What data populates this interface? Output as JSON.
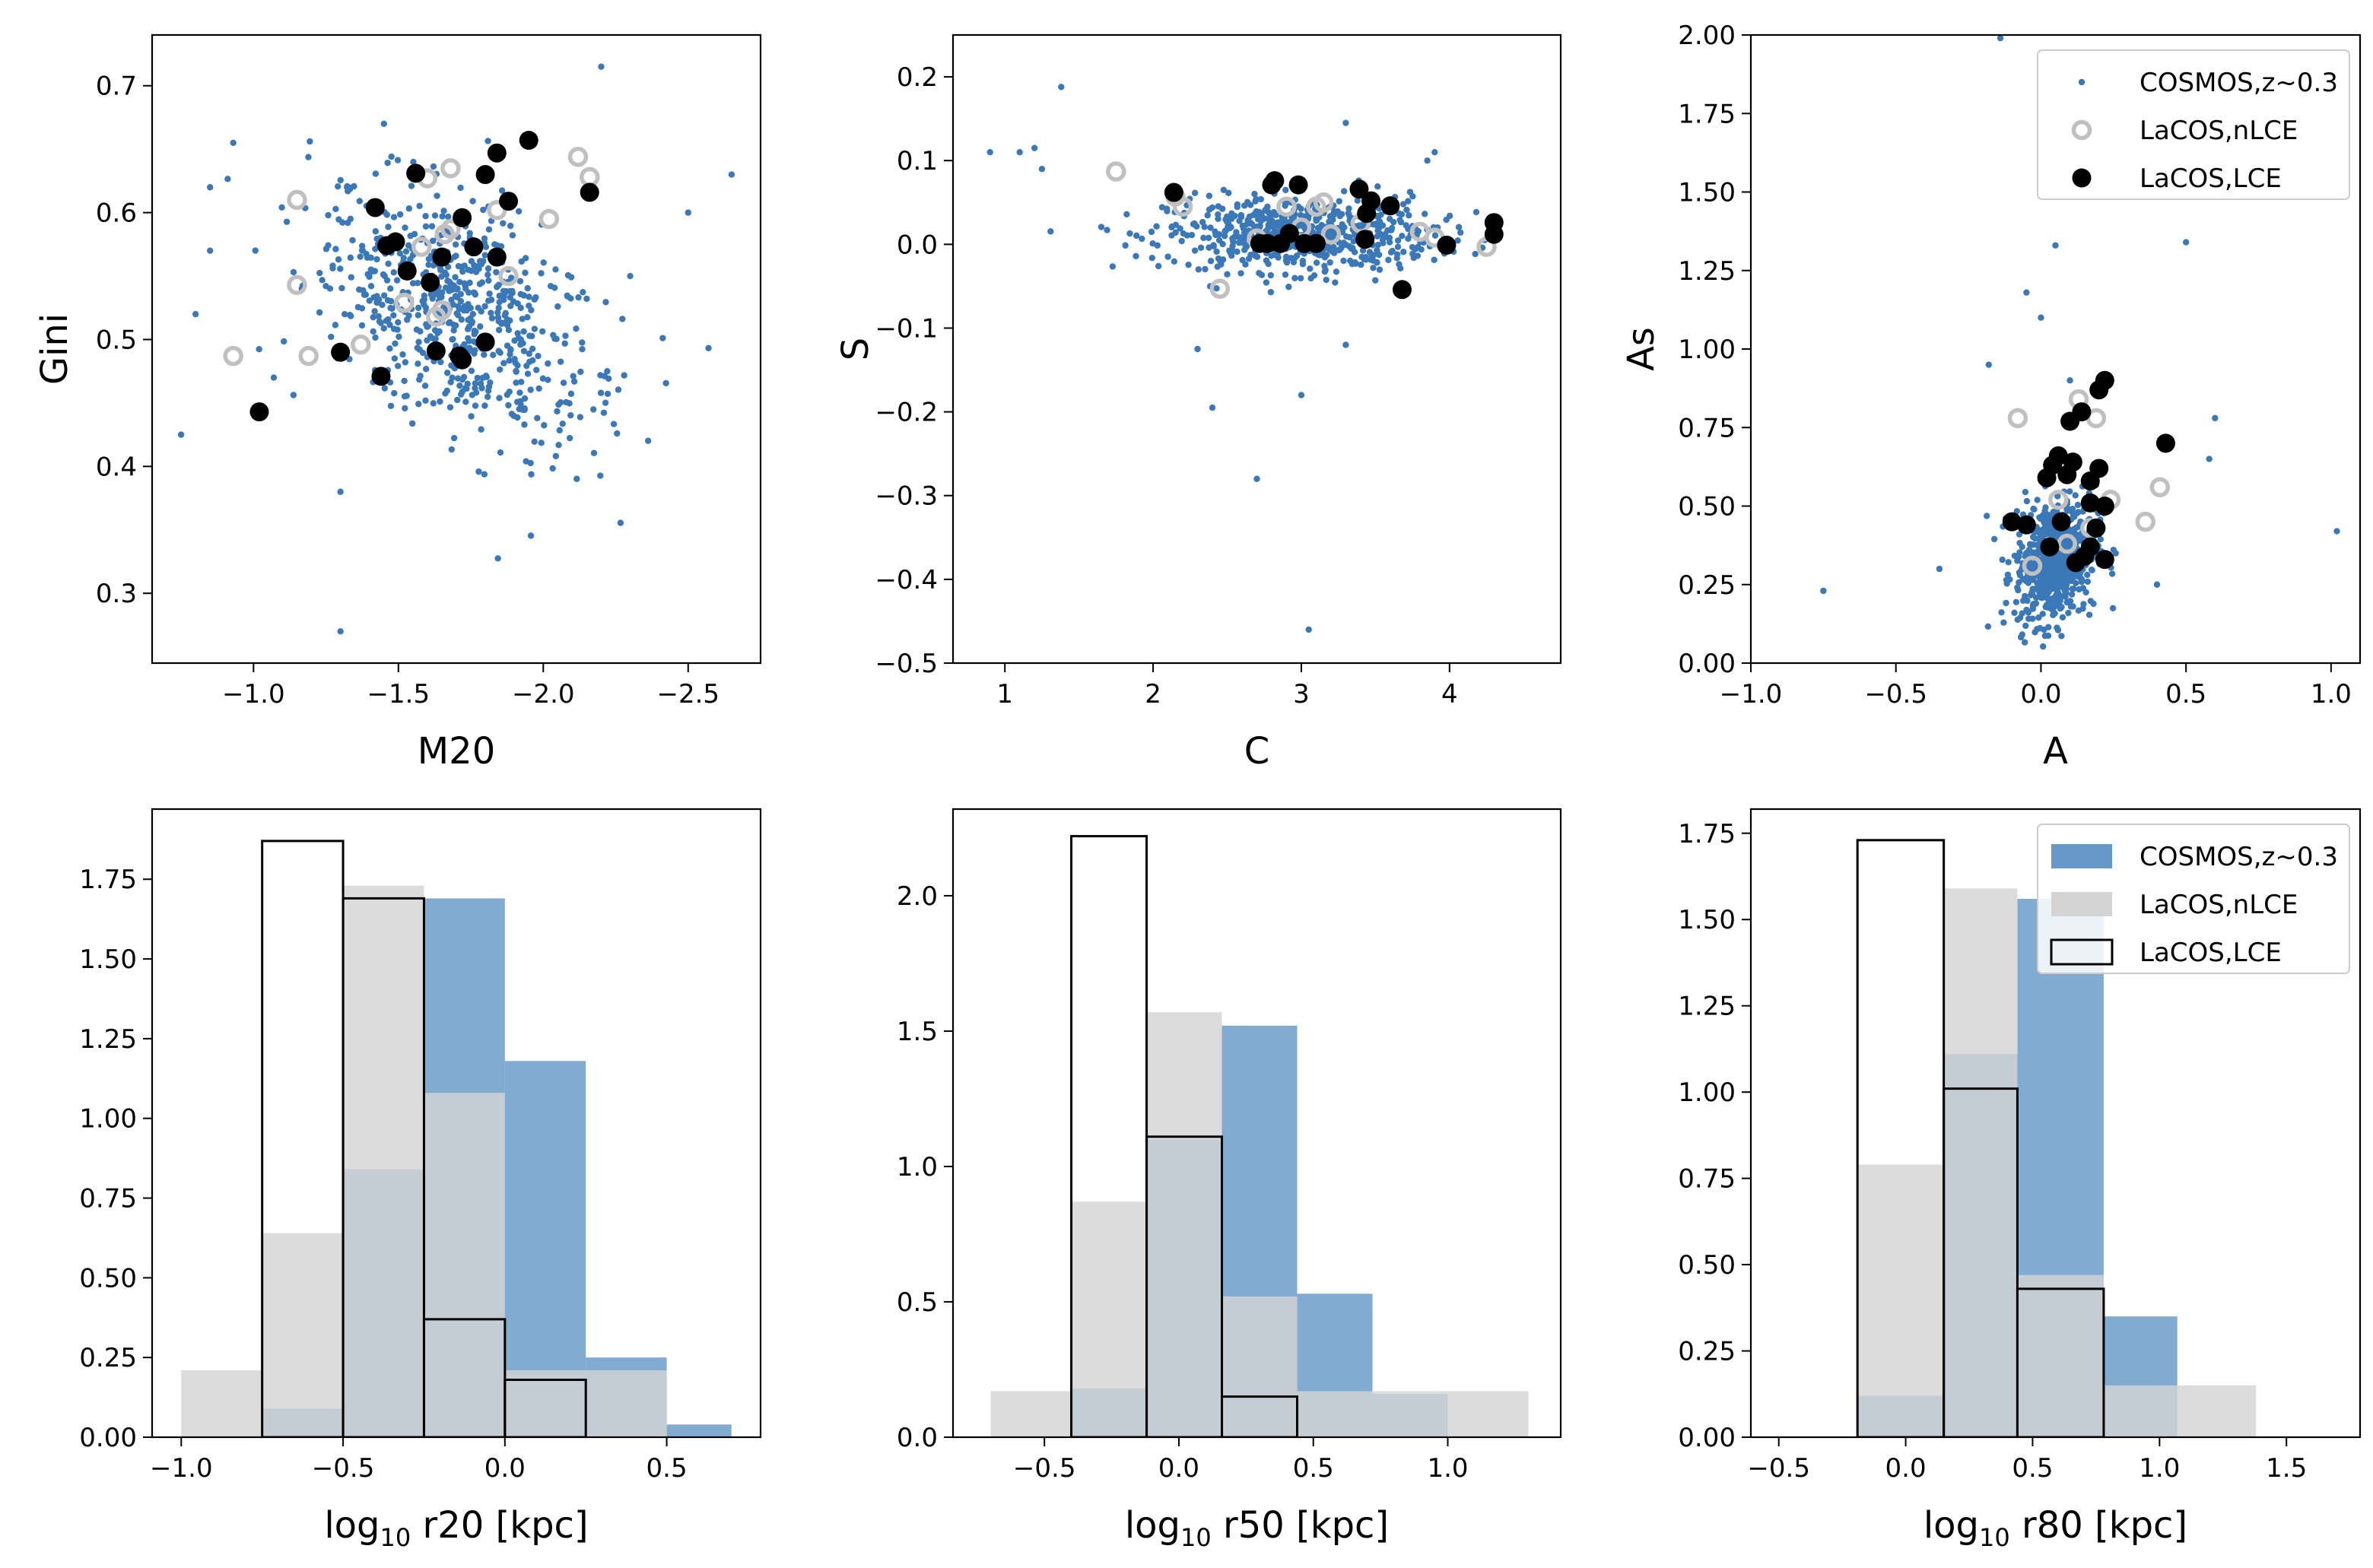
{
  "colors": {
    "cosmos": "#3a78b8",
    "nlce": "#c0c0c0",
    "lce": "#000000",
    "hist_cosmos": "#6699c8",
    "hist_nlce": "#d4d4d4"
  },
  "legend": {
    "cosmos": "COSMOS,z~0.3",
    "nlce": "LaCOS,nLCE",
    "lce": "LaCOS,LCE"
  },
  "chart_data": [
    {
      "type": "scatter",
      "panel": "top-left",
      "xlabel": "M20",
      "ylabel": "Gini",
      "xlim": [
        -0.65,
        -2.75
      ],
      "ylim": [
        0.245,
        0.74
      ],
      "xticks": [
        -1.0,
        -1.5,
        -2.0,
        -2.5
      ],
      "xtick_labels": [
        "−1.0",
        "−1.5",
        "−2.0",
        "−2.5"
      ],
      "yticks": [
        0.3,
        0.4,
        0.5,
        0.6,
        0.7
      ],
      "ytick_labels": [
        "0.3",
        "0.4",
        "0.5",
        "0.6",
        "0.7"
      ],
      "cloud": {
        "center": [
          -1.7,
          0.52
        ],
        "spread": [
          0.25,
          0.05
        ],
        "corr": 0.45,
        "n": 650
      },
      "cosmos_outliers": [
        [
          -0.75,
          0.425
        ],
        [
          -0.85,
          0.62
        ],
        [
          -0.85,
          0.57
        ],
        [
          -0.8,
          0.52
        ],
        [
          -0.93,
          0.655
        ],
        [
          -1.07,
          0.47
        ],
        [
          -1.3,
          0.27
        ],
        [
          -1.3,
          0.38
        ],
        [
          -2.65,
          0.63
        ],
        [
          -2.2,
          0.715
        ],
        [
          -1.45,
          0.67
        ],
        [
          -2.3,
          0.55
        ],
        [
          -2.5,
          0.6
        ]
      ],
      "nlce": [
        [
          -0.93,
          0.487
        ],
        [
          -1.15,
          0.61
        ],
        [
          -1.15,
          0.543
        ],
        [
          -1.19,
          0.487
        ],
        [
          -1.37,
          0.496
        ],
        [
          -1.52,
          0.529
        ],
        [
          -1.58,
          0.573
        ],
        [
          -1.6,
          0.627
        ],
        [
          -1.63,
          0.518
        ],
        [
          -1.65,
          0.523
        ],
        [
          -1.66,
          0.583
        ],
        [
          -1.68,
          0.587
        ],
        [
          -1.68,
          0.635
        ],
        [
          -1.84,
          0.602
        ],
        [
          -1.88,
          0.55
        ],
        [
          -2.02,
          0.595
        ],
        [
          -2.12,
          0.644
        ],
        [
          -2.16,
          0.628
        ]
      ],
      "lce": [
        [
          -1.02,
          0.443
        ],
        [
          -1.3,
          0.49
        ],
        [
          -1.42,
          0.604
        ],
        [
          -1.44,
          0.471
        ],
        [
          -1.46,
          0.574
        ],
        [
          -1.49,
          0.577
        ],
        [
          -1.53,
          0.554
        ],
        [
          -1.56,
          0.631
        ],
        [
          -1.61,
          0.545
        ],
        [
          -1.63,
          0.491
        ],
        [
          -1.65,
          0.565
        ],
        [
          -1.71,
          0.487
        ],
        [
          -1.72,
          0.484
        ],
        [
          -1.72,
          0.596
        ],
        [
          -1.76,
          0.573
        ],
        [
          -1.8,
          0.498
        ],
        [
          -1.8,
          0.63
        ],
        [
          -1.84,
          0.647
        ],
        [
          -1.84,
          0.565
        ],
        [
          -1.88,
          0.609
        ],
        [
          -1.95,
          0.657
        ],
        [
          -2.16,
          0.616
        ]
      ]
    },
    {
      "type": "scatter",
      "panel": "top-middle",
      "xlabel": "C",
      "ylabel": "S",
      "xlim": [
        0.65,
        4.75
      ],
      "ylim": [
        -0.5,
        0.25
      ],
      "xticks": [
        1,
        2,
        3,
        4
      ],
      "xtick_labels": [
        "1",
        "2",
        "3",
        "4"
      ],
      "yticks": [
        -0.5,
        -0.4,
        -0.3,
        -0.2,
        -0.1,
        0.0,
        0.1,
        0.2
      ],
      "ytick_labels": [
        "−0.5",
        "−0.4",
        "−0.3",
        "−0.2",
        "−0.1",
        "0.0",
        "0.1",
        "0.2"
      ],
      "cloud": {
        "center": [
          3.0,
          0.012
        ],
        "spread": [
          0.45,
          0.022
        ],
        "corr": 0.0,
        "n": 650
      },
      "cosmos_outliers": [
        [
          0.9,
          0.11
        ],
        [
          1.1,
          0.11
        ],
        [
          1.2,
          0.115
        ],
        [
          1.25,
          0.09
        ],
        [
          1.38,
          0.188
        ],
        [
          2.3,
          -0.125
        ],
        [
          2.4,
          -0.195
        ],
        [
          2.7,
          -0.28
        ],
        [
          3.0,
          -0.18
        ],
        [
          3.3,
          -0.12
        ],
        [
          3.05,
          -0.46
        ],
        [
          3.3,
          0.145
        ],
        [
          3.9,
          0.11
        ],
        [
          3.85,
          0.1
        ]
      ],
      "nlce": [
        [
          1.75,
          0.087
        ],
        [
          2.15,
          0.057
        ],
        [
          2.2,
          0.045
        ],
        [
          2.45,
          -0.053
        ],
        [
          2.7,
          0.007
        ],
        [
          2.9,
          0.045
        ],
        [
          3.0,
          0.02
        ],
        [
          3.1,
          0.045
        ],
        [
          3.15,
          0.05
        ],
        [
          3.2,
          0.012
        ],
        [
          3.4,
          0.025
        ],
        [
          3.8,
          0.015
        ],
        [
          3.9,
          0.008
        ],
        [
          4.25,
          -0.003
        ]
      ],
      "lce": [
        [
          2.14,
          0.062
        ],
        [
          2.72,
          0.001
        ],
        [
          2.77,
          0.001
        ],
        [
          2.8,
          0.071
        ],
        [
          2.82,
          0.076
        ],
        [
          2.86,
          0.001
        ],
        [
          2.92,
          0.013
        ],
        [
          2.98,
          0.071
        ],
        [
          3.02,
          0.001
        ],
        [
          3.1,
          0.001
        ],
        [
          3.39,
          0.066
        ],
        [
          3.43,
          0.006
        ],
        [
          3.44,
          0.037
        ],
        [
          3.47,
          0.052
        ],
        [
          3.6,
          0.046
        ],
        [
          3.68,
          -0.054
        ],
        [
          3.98,
          -0.001
        ],
        [
          4.3,
          0.012
        ],
        [
          4.3,
          0.026
        ]
      ]
    },
    {
      "type": "scatter",
      "panel": "top-right",
      "xlabel": "A",
      "ylabel": "As",
      "xlim": [
        -1.0,
        1.1
      ],
      "ylim": [
        0.0,
        2.0
      ],
      "xticks": [
        -1.0,
        -0.5,
        0.0,
        0.5,
        1.0
      ],
      "xtick_labels": [
        "−1.0",
        "−0.5",
        "0.0",
        "0.5",
        "1.0"
      ],
      "yticks": [
        0.0,
        0.25,
        0.5,
        0.75,
        1.0,
        1.25,
        1.5,
        1.75,
        2.0
      ],
      "ytick_labels": [
        "0.00",
        "0.25",
        "0.50",
        "0.75",
        "1.00",
        "1.25",
        "1.50",
        "1.75",
        "2.00"
      ],
      "legend_position": "top-right",
      "cloud": {
        "center": [
          0.05,
          0.33
        ],
        "spread": [
          0.07,
          0.1
        ],
        "corr": 0.2,
        "n": 650
      },
      "cosmos_outliers": [
        [
          -0.14,
          1.99
        ],
        [
          -0.75,
          0.23
        ],
        [
          -0.35,
          0.3
        ],
        [
          0.5,
          1.34
        ],
        [
          0.05,
          1.33
        ],
        [
          -0.05,
          1.18
        ],
        [
          0.0,
          1.1
        ],
        [
          1.02,
          0.42
        ],
        [
          0.6,
          0.78
        ],
        [
          0.58,
          0.65
        ],
        [
          -0.18,
          0.95
        ],
        [
          0.1,
          0.9
        ],
        [
          0.4,
          0.25
        ]
      ],
      "nlce": [
        [
          -0.08,
          0.78
        ],
        [
          0.13,
          0.84
        ],
        [
          0.19,
          0.78
        ],
        [
          0.24,
          0.52
        ],
        [
          0.36,
          0.45
        ],
        [
          0.41,
          0.56
        ],
        [
          -0.03,
          0.31
        ],
        [
          0.06,
          0.52
        ],
        [
          0.09,
          0.38
        ],
        [
          0.17,
          0.43
        ]
      ],
      "lce": [
        [
          -0.1,
          0.45
        ],
        [
          -0.05,
          0.44
        ],
        [
          0.02,
          0.59
        ],
        [
          0.03,
          0.37
        ],
        [
          0.04,
          0.63
        ],
        [
          0.06,
          0.66
        ],
        [
          0.07,
          0.45
        ],
        [
          0.09,
          0.6
        ],
        [
          0.1,
          0.77
        ],
        [
          0.11,
          0.64
        ],
        [
          0.12,
          0.32
        ],
        [
          0.14,
          0.8
        ],
        [
          0.15,
          0.34
        ],
        [
          0.17,
          0.51
        ],
        [
          0.17,
          0.58
        ],
        [
          0.17,
          0.37
        ],
        [
          0.19,
          0.43
        ],
        [
          0.2,
          0.62
        ],
        [
          0.2,
          0.87
        ],
        [
          0.22,
          0.9
        ],
        [
          0.22,
          0.33
        ],
        [
          0.22,
          0.5
        ],
        [
          0.43,
          0.7
        ]
      ]
    },
    {
      "type": "histogram",
      "panel": "bottom-left",
      "xlabel": "r20 [kpc]",
      "xlabel_prefix": "log",
      "xlabel_sub": "10",
      "xlim": [
        -1.09,
        0.79
      ],
      "ylim": [
        0,
        1.97
      ],
      "xticks": [
        -1.0,
        -0.5,
        0.0,
        0.5
      ],
      "xtick_labels": [
        "−1.0",
        "−0.5",
        "0.0",
        "0.5"
      ],
      "yticks": [
        0,
        0.25,
        0.5,
        0.75,
        1.0,
        1.25,
        1.5,
        1.75
      ],
      "ytick_labels": [
        "0.00",
        "0.25",
        "0.50",
        "0.75",
        "1.00",
        "1.25",
        "1.50",
        "1.75"
      ],
      "legend_position": "none",
      "cosmos": {
        "edges": [
          -0.75,
          -0.5,
          -0.25,
          0.0,
          0.25,
          0.5,
          0.7
        ],
        "values": [
          0.09,
          0.84,
          1.69,
          1.18,
          0.25,
          0.04
        ]
      },
      "nlce": {
        "edges": [
          -1.0,
          -0.75,
          -0.5,
          -0.25,
          0.0,
          0.25,
          0.5
        ],
        "values": [
          0.21,
          0.64,
          1.73,
          1.08,
          0.21,
          0.21
        ]
      },
      "lce": {
        "edges": [
          -0.75,
          -0.5,
          -0.25,
          0.0,
          0.25
        ],
        "values": [
          1.87,
          1.69,
          0.37,
          0.18
        ]
      }
    },
    {
      "type": "histogram",
      "panel": "bottom-middle",
      "xlabel": "r50 [kpc]",
      "xlabel_prefix": "log",
      "xlabel_sub": "10",
      "xlim": [
        -0.84,
        1.42
      ],
      "ylim": [
        0,
        2.32
      ],
      "xticks": [
        -0.5,
        0.0,
        0.5,
        1.0
      ],
      "xtick_labels": [
        "−0.5",
        "0.0",
        "0.5",
        "1.0"
      ],
      "yticks": [
        0.0,
        0.5,
        1.0,
        1.5,
        2.0
      ],
      "ytick_labels": [
        "0.0",
        "0.5",
        "1.0",
        "1.5",
        "2.0"
      ],
      "legend_position": "none",
      "cosmos": {
        "edges": [
          -0.4,
          -0.12,
          0.16,
          0.44,
          0.72,
          1.0
        ],
        "values": [
          0.18,
          1.1,
          1.52,
          0.53,
          0.16
        ]
      },
      "nlce": {
        "edges": [
          -0.7,
          -0.4,
          -0.12,
          0.16,
          0.44,
          0.72,
          1.0,
          1.3
        ],
        "values": [
          0.17,
          0.87,
          1.57,
          0.52,
          0.17,
          0.17,
          0.17
        ]
      },
      "lce": {
        "edges": [
          -0.4,
          -0.12,
          0.16,
          0.44
        ],
        "values": [
          2.22,
          1.11,
          0.15
        ]
      }
    },
    {
      "type": "histogram",
      "panel": "bottom-right",
      "xlabel": "r80 [kpc]",
      "xlabel_prefix": "log",
      "xlabel_sub": "10",
      "xlim": [
        -0.61,
        1.79
      ],
      "ylim": [
        0,
        1.82
      ],
      "xticks": [
        -0.5,
        0.0,
        0.5,
        1.0,
        1.5
      ],
      "xtick_labels": [
        "−0.5",
        "0.0",
        "0.5",
        "1.0",
        "1.5"
      ],
      "yticks": [
        0,
        0.25,
        0.5,
        0.75,
        1.0,
        1.25,
        1.5,
        1.75
      ],
      "ytick_labels": [
        "0.00",
        "0.25",
        "0.50",
        "0.75",
        "1.00",
        "1.25",
        "1.50",
        "1.75"
      ],
      "legend_position": "top-right",
      "cosmos": {
        "edges": [
          -0.19,
          0.15,
          0.44,
          0.78,
          1.07
        ],
        "values": [
          0.12,
          1.11,
          1.56,
          0.35
        ]
      },
      "nlce": {
        "edges": [
          -0.19,
          0.15,
          0.44,
          0.78,
          1.07,
          1.38
        ],
        "values": [
          0.79,
          1.59,
          0.47,
          0.15,
          0.15
        ]
      },
      "lce": {
        "edges": [
          -0.5,
          -0.19,
          0.15,
          0.44,
          0.78,
          1.07,
          1.38,
          1.68
        ],
        "values": [
          0,
          1.73,
          1.01,
          0.43,
          0,
          0,
          0
        ]
      }
    }
  ]
}
